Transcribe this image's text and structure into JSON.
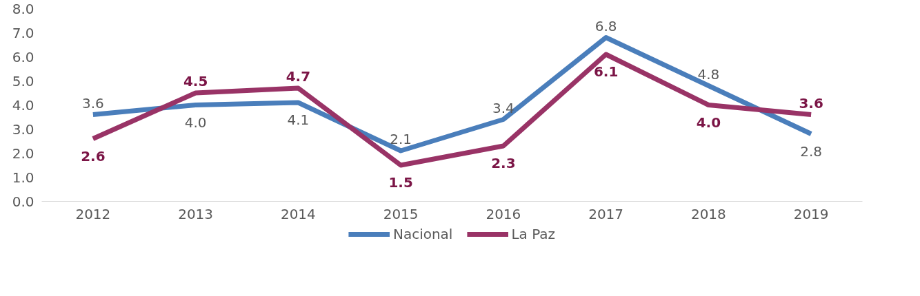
{
  "chart_data": {
    "type": "line",
    "categories": [
      "2012",
      "2013",
      "2014",
      "2015",
      "2016",
      "2017",
      "2018",
      "2019"
    ],
    "series": [
      {
        "name": "Nacional",
        "color": "#4a7ebb",
        "values": [
          3.6,
          4.0,
          4.1,
          2.1,
          3.4,
          6.8,
          4.8,
          2.8
        ],
        "value_labels": [
          "3.6",
          "4.0",
          "4.1",
          "2.1",
          "3.4",
          "6.8",
          "4.8",
          "2.8"
        ]
      },
      {
        "name": "La Paz",
        "color": "#993366",
        "values": [
          2.6,
          4.5,
          4.7,
          1.5,
          2.3,
          6.1,
          4.0,
          3.6
        ],
        "value_labels": [
          "2.6",
          "4.5",
          "4.7",
          "1.5",
          "2.3",
          "6.1",
          "4.0",
          "3.6"
        ]
      }
    ],
    "ylim": [
      0,
      8
    ],
    "yticks": [
      {
        "value": 0,
        "label": "0.0"
      },
      {
        "value": 1,
        "label": "1.0"
      },
      {
        "value": 2,
        "label": "2.0"
      },
      {
        "value": 3,
        "label": "3.0"
      },
      {
        "value": 4,
        "label": "4.0"
      },
      {
        "value": 5,
        "label": "5.0"
      },
      {
        "value": 6,
        "label": "6.0"
      },
      {
        "value": 7,
        "label": "7.0"
      },
      {
        "value": 8,
        "label": "8.0"
      }
    ],
    "legend": "bottom",
    "marker": "none",
    "line_style": "solid"
  }
}
